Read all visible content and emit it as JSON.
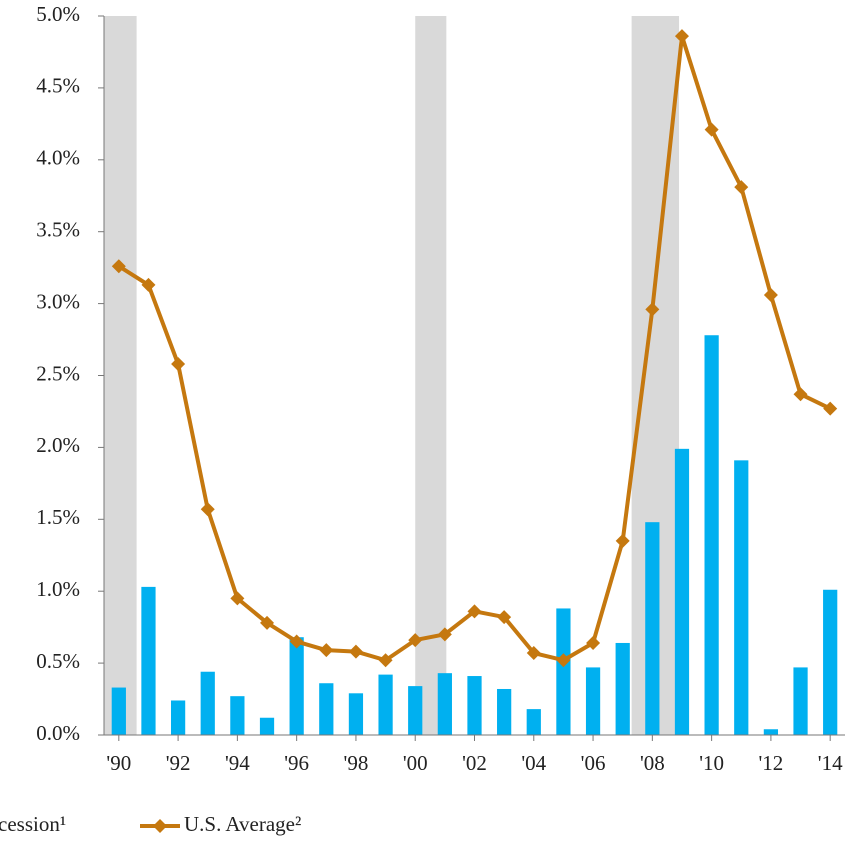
{
  "chart_data": {
    "type": "bar_line",
    "x": [
      1990,
      1991,
      1992,
      1993,
      1994,
      1995,
      1996,
      1997,
      1998,
      1999,
      2000,
      2001,
      2002,
      2003,
      2004,
      2005,
      2006,
      2007,
      2008,
      2009,
      2010,
      2011,
      2012,
      2013,
      2014
    ],
    "xlim": [
      1989.5,
      2014.5
    ],
    "xticks": [
      {
        "value": 1990,
        "label": "'90"
      },
      {
        "value": 1992,
        "label": "'92"
      },
      {
        "value": 1994,
        "label": "'94"
      },
      {
        "value": 1996,
        "label": "'96"
      },
      {
        "value": 1998,
        "label": "'98"
      },
      {
        "value": 2000,
        "label": "'00"
      },
      {
        "value": 2002,
        "label": "'02"
      },
      {
        "value": 2004,
        "label": "'04"
      },
      {
        "value": 2006,
        "label": "'06"
      },
      {
        "value": 2008,
        "label": "'08"
      },
      {
        "value": 2010,
        "label": "'10"
      },
      {
        "value": 2012,
        "label": "'12"
      },
      {
        "value": 2014,
        "label": "'14"
      }
    ],
    "ylim": [
      0,
      5
    ],
    "yticks": [
      {
        "value": 0,
        "label": "0.0%"
      },
      {
        "value": 0.5,
        "label": "0.5%"
      },
      {
        "value": 1,
        "label": "1.0%"
      },
      {
        "value": 1.5,
        "label": "1.5%"
      },
      {
        "value": 2,
        "label": "2.0%"
      },
      {
        "value": 2.5,
        "label": "2.5%"
      },
      {
        "value": 3,
        "label": "3.0%"
      },
      {
        "value": 3.5,
        "label": "3.5%"
      },
      {
        "value": 4,
        "label": "4.0%"
      },
      {
        "value": 4.5,
        "label": "4.5%"
      },
      {
        "value": 5,
        "label": "5.0%"
      }
    ],
    "recessions": {
      "name": "cession¹",
      "color": "#d9d9d9",
      "ranges": [
        [
          1989.5,
          1990.6
        ],
        [
          2000,
          2001.05
        ],
        [
          2007.3,
          2008.9
        ]
      ]
    },
    "series": [
      {
        "type": "bar",
        "color": "#00b0f0",
        "values": [
          0.33,
          1.03,
          0.24,
          0.44,
          0.27,
          0.12,
          0.68,
          0.36,
          0.29,
          0.42,
          0.34,
          0.43,
          0.41,
          0.32,
          0.18,
          0.88,
          0.47,
          0.64,
          1.48,
          1.99,
          2.78,
          1.91,
          0.04,
          0.47,
          1.01
        ]
      },
      {
        "type": "line",
        "name": "U.S. Average²",
        "color": "#c5780f",
        "values": [
          3.26,
          3.13,
          2.58,
          1.57,
          0.95,
          0.78,
          0.65,
          0.59,
          0.58,
          0.52,
          0.66,
          0.7,
          0.86,
          0.82,
          0.57,
          0.52,
          0.64,
          1.35,
          2.96,
          4.86,
          4.21,
          3.81,
          3.06,
          2.37,
          2.27
        ]
      }
    ]
  }
}
